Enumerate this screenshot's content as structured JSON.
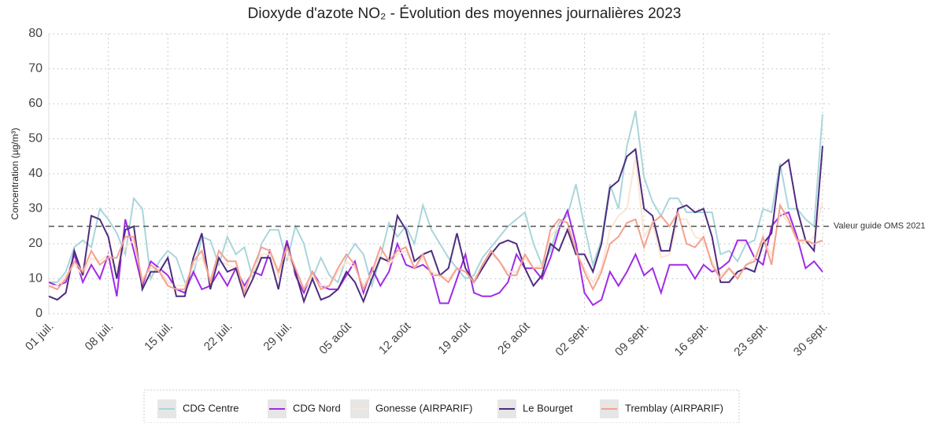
{
  "chart_data": {
    "type": "line",
    "title": "Dioxyde d'azote NO₂ - Évolution des moyennes journalières 2023",
    "y_label": "Concentration (µg/m³)",
    "categories": [
      "01 juil.",
      null,
      null,
      null,
      null,
      null,
      null,
      "08 juil.",
      null,
      null,
      null,
      null,
      null,
      null,
      "15 juil.",
      null,
      null,
      null,
      null,
      null,
      null,
      "22 juil.",
      null,
      null,
      null,
      null,
      null,
      null,
      "29 juil.",
      null,
      null,
      null,
      null,
      null,
      null,
      "05 août",
      null,
      null,
      null,
      null,
      null,
      null,
      "12 août",
      null,
      null,
      null,
      null,
      null,
      null,
      "19 août",
      null,
      null,
      null,
      null,
      null,
      null,
      "26 août",
      null,
      null,
      null,
      null,
      null,
      null,
      "02 sept.",
      null,
      null,
      null,
      null,
      null,
      null,
      "09 sept.",
      null,
      null,
      null,
      null,
      null,
      null,
      "16 sept.",
      null,
      null,
      null,
      null,
      null,
      null,
      "23 sept.",
      null,
      null,
      null,
      null,
      null,
      null,
      "30 sept."
    ],
    "series": [
      {
        "name": "CDG Centre",
        "color": "#a9d6db",
        "values": [
          9,
          9,
          12,
          19,
          21,
          19,
          30,
          27,
          23,
          17,
          33,
          30,
          10,
          15,
          18,
          16,
          9,
          11,
          22,
          21,
          14,
          22,
          17,
          19,
          10,
          20,
          24,
          24,
          15,
          25,
          20,
          10,
          16,
          11,
          9,
          16,
          20,
          17,
          8,
          16,
          26,
          22,
          25,
          20,
          31,
          24,
          20,
          16,
          13,
          10,
          11,
          16,
          19,
          22,
          25,
          27,
          29,
          20,
          14,
          18,
          26,
          28,
          37,
          25,
          14,
          21,
          37,
          30,
          48,
          58,
          39,
          32,
          28,
          33,
          33,
          29,
          29,
          29,
          29,
          17,
          18,
          15,
          20,
          21,
          30,
          29,
          43,
          30,
          30,
          27,
          25,
          57
        ]
      },
      {
        "name": "CDG Nord",
        "color": "#a02be8",
        "values": [
          9,
          8,
          9,
          17,
          9,
          14,
          10,
          17,
          5,
          27,
          18,
          8,
          15,
          13,
          11,
          7,
          6,
          12,
          7,
          8,
          12,
          8,
          13,
          8,
          12,
          11,
          18,
          11,
          21,
          11,
          6,
          12,
          8,
          7,
          7,
          11,
          15,
          6,
          13,
          8,
          12,
          20,
          14,
          13,
          14,
          12,
          3,
          3,
          10,
          17,
          6,
          5,
          5,
          6,
          9,
          17,
          13,
          13,
          10,
          16,
          24,
          29.5,
          20,
          6,
          2.5,
          4,
          12,
          8,
          12,
          17,
          11,
          13,
          6,
          14,
          14,
          14,
          10,
          14,
          12,
          13,
          15,
          21,
          21,
          16,
          14,
          25,
          28,
          29,
          22,
          13,
          15,
          12
        ]
      },
      {
        "name": "Gonesse (AIRPARIF)",
        "color": "#fbe6d2",
        "values": [
          8,
          8,
          11,
          14,
          11,
          16,
          15,
          17,
          13,
          19,
          21,
          10,
          13,
          13,
          9,
          8,
          8,
          14,
          16,
          10,
          15,
          14,
          13,
          7,
          12,
          17,
          17,
          11,
          17,
          12,
          7,
          11,
          8,
          8,
          12,
          15,
          13,
          8,
          12,
          17,
          14,
          17,
          18,
          13,
          16,
          12,
          11,
          10,
          13,
          12,
          10,
          13,
          17,
          15,
          12,
          12,
          16,
          13,
          14,
          22,
          25,
          24,
          18,
          13,
          9,
          13,
          24,
          28,
          30,
          45,
          22,
          26,
          16,
          17,
          27,
          27,
          22,
          21,
          15,
          11,
          13,
          11,
          14,
          16,
          21,
          17,
          29,
          26,
          21,
          20,
          22,
          32
        ]
      },
      {
        "name": "Le Bourget",
        "color": "#4d2c7e",
        "values": [
          5,
          4,
          6,
          18,
          11,
          28,
          27,
          22,
          10,
          24,
          25,
          7,
          12,
          12,
          16,
          5,
          5,
          16,
          23,
          7,
          16,
          12,
          13,
          5,
          10,
          16,
          16,
          7,
          20,
          12,
          3.5,
          10,
          4,
          5,
          7,
          12,
          9,
          3.5,
          10,
          16,
          15,
          28,
          24,
          15,
          17,
          18,
          11,
          13,
          23,
          13,
          9,
          13,
          17,
          20,
          21,
          20,
          13,
          8,
          11,
          20,
          18,
          24,
          17,
          17,
          12,
          20,
          36,
          38,
          45,
          47,
          30,
          28,
          18,
          18,
          30,
          31,
          29,
          30,
          22,
          9,
          9,
          12,
          13,
          12,
          20,
          23,
          42,
          44,
          30,
          21,
          18,
          48
        ]
      },
      {
        "name": "Tremblay (AIRPARIF)",
        "color": "#f4a190",
        "values": [
          8,
          7,
          10,
          15,
          12,
          18,
          14,
          16,
          16,
          22,
          22,
          9,
          14,
          12,
          8,
          7,
          7,
          15,
          18,
          9,
          18,
          15,
          15,
          6,
          13,
          19,
          18,
          12,
          19,
          13,
          7,
          12,
          7,
          8,
          13,
          17,
          14,
          7,
          12,
          19,
          15,
          18,
          19,
          13,
          17,
          11,
          11,
          9,
          13,
          12,
          9,
          14,
          18,
          15,
          11,
          11,
          17,
          13,
          13,
          24,
          27,
          26,
          18,
          12,
          7,
          12,
          20,
          22,
          26,
          27,
          19,
          26,
          28,
          25,
          29,
          20,
          19,
          22,
          14,
          10,
          13,
          10,
          14,
          15,
          22,
          14,
          31,
          27,
          21,
          21,
          20,
          21
        ]
      }
    ],
    "reference_line": {
      "value": 25,
      "label": "Valeur guide OMS 2021"
    },
    "ylim": [
      0,
      80
    ],
    "yticks": [
      0,
      10,
      20,
      30,
      40,
      50,
      60,
      70,
      80
    ],
    "grid": true,
    "legend": "bottom"
  }
}
